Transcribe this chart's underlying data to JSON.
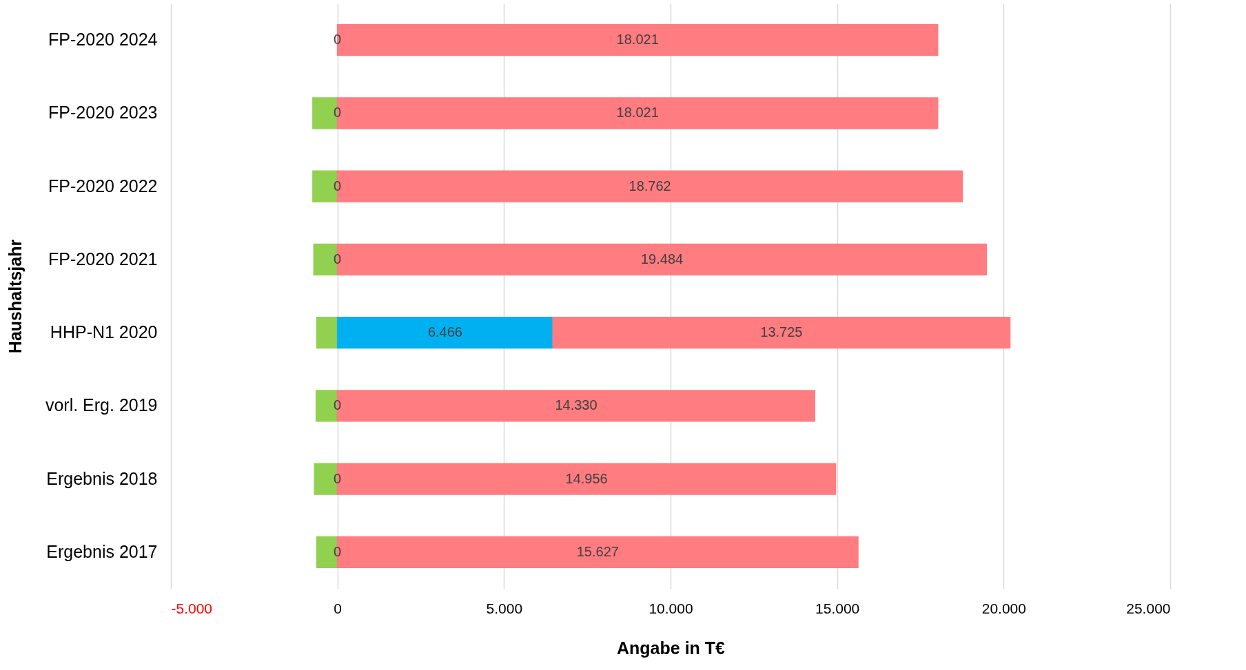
{
  "chart_data": {
    "type": "bar",
    "orientation": "horizontal",
    "stacked": true,
    "xlabel": "Angabe in T€",
    "ylabel": "Haushaltsjahr",
    "categories": [
      "FP-2020 2024",
      "FP-2020 2023",
      "FP-2020 2022",
      "FP-2020 2021",
      "HHP-N1 2020",
      "vorl. Erg. 2019",
      "Ergebnis 2018",
      "Ergebnis 2017"
    ],
    "series": [
      {
        "color": "#92d050",
        "values": [
          null,
          -740,
          -740,
          -710,
          -620,
          -640,
          -690,
          -620
        ]
      },
      {
        "color": "#00b0f0",
        "values": [
          0,
          0,
          0,
          0,
          6466,
          0,
          0,
          0
        ],
        "value_labels": [
          "0",
          "0",
          "0",
          "0",
          "6.466",
          "0",
          "0",
          "0"
        ]
      },
      {
        "color": "#ff7c80",
        "values": [
          18021,
          18021,
          18762,
          19484,
          13725,
          14330,
          14956,
          15627
        ],
        "value_labels": [
          "18.021",
          "18.021",
          "18.762",
          "19.484",
          "13.725",
          "14.330",
          "14.956",
          "15.627"
        ]
      }
    ],
    "xlim": [
      -5000,
      25000
    ],
    "xticks": [
      {
        "value": -5000,
        "label": "-5.000"
      },
      0,
      {
        "value": 5000,
        "label": "5.000"
      },
      {
        "value": 10000,
        "label": "10.000"
      },
      {
        "value": 15000,
        "label": "15.000"
      },
      {
        "value": 20000,
        "label": "20.000"
      },
      {
        "value": 25000,
        "label": "25.000"
      }
    ],
    "grid": "x",
    "legend": false
  }
}
